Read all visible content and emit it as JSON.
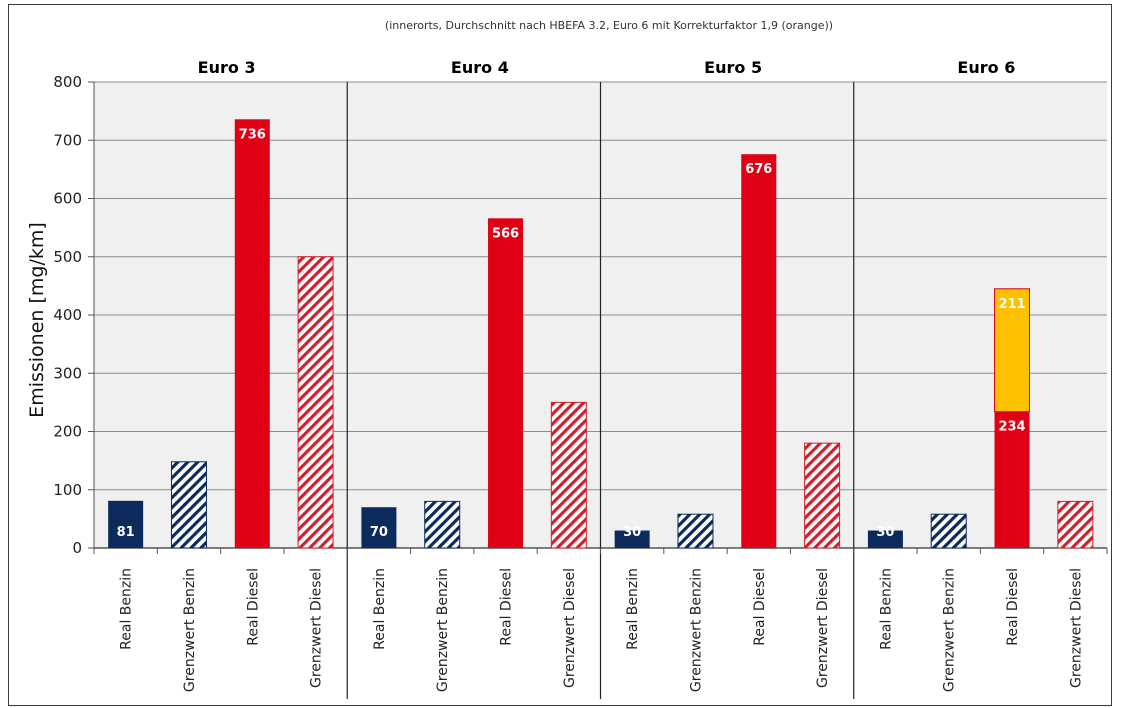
{
  "chart_data": {
    "type": "bar",
    "subtitle": "(innerorts, Durchschnitt nach HBEFA 3.2, Euro 6 mit Korrekturfaktor 1,9 (orange))",
    "ylabel": "Emissionen  [mg/km]",
    "xlabel": "",
    "ylim": [
      0,
      800
    ],
    "yticks": [
      0,
      100,
      200,
      300,
      400,
      500,
      600,
      700,
      800
    ],
    "grid": true,
    "categories": [
      "Real Benzin",
      "Grenzwert Benzin",
      "Real Diesel",
      "Grenzwert Diesel"
    ],
    "groups": [
      {
        "name": "Euro 3",
        "values": [
          81,
          148,
          736,
          500
        ],
        "labels": [
          "81",
          "",
          "736",
          ""
        ]
      },
      {
        "name": "Euro 4",
        "values": [
          70,
          80,
          566,
          250
        ],
        "labels": [
          "70",
          "",
          "566",
          ""
        ]
      },
      {
        "name": "Euro 5",
        "values": [
          30,
          58,
          676,
          180
        ],
        "labels": [
          "30",
          "",
          "676",
          ""
        ]
      },
      {
        "name": "Euro 6",
        "values": [
          30,
          58,
          234,
          80
        ],
        "labels": [
          "30",
          "",
          "234",
          ""
        ],
        "stack_on_real_diesel": {
          "value": 211,
          "label": "211",
          "color": "#ffc000"
        }
      }
    ],
    "colors": {
      "real_benzin": "#0d2a5c",
      "grenzwert_benzin": "#0d2a5c",
      "real_diesel": "#e00015",
      "grenzwert_diesel": "#d0202e",
      "korrekturfaktor": "#ffc000"
    },
    "hatched": [
      false,
      true,
      false,
      true
    ]
  }
}
